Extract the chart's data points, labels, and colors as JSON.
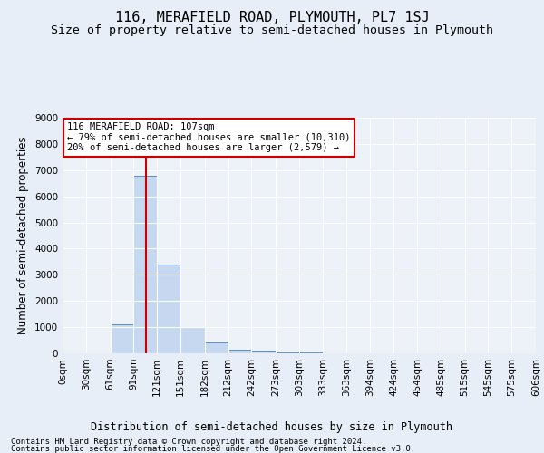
{
  "title_line1": "116, MERAFIELD ROAD, PLYMOUTH, PL7 1SJ",
  "title_line2": "Size of property relative to semi-detached houses in Plymouth",
  "xlabel": "Distribution of semi-detached houses by size in Plymouth",
  "ylabel": "Number of semi-detached properties",
  "footer_line1": "Contains HM Land Registry data © Crown copyright and database right 2024.",
  "footer_line2": "Contains public sector information licensed under the Open Government Licence v3.0.",
  "bin_edges": [
    0,
    30,
    61,
    91,
    121,
    151,
    182,
    212,
    242,
    273,
    303,
    333,
    363,
    394,
    424,
    454,
    485,
    515,
    545,
    575,
    606
  ],
  "bin_labels": [
    "0sqm",
    "30sqm",
    "61sqm",
    "91sqm",
    "121sqm",
    "151sqm",
    "182sqm",
    "212sqm",
    "242sqm",
    "273sqm",
    "303sqm",
    "333sqm",
    "363sqm",
    "394sqm",
    "424sqm",
    "454sqm",
    "485sqm",
    "515sqm",
    "545sqm",
    "575sqm",
    "606sqm"
  ],
  "bar_heights": [
    0,
    0,
    1100,
    6800,
    3400,
    1000,
    400,
    150,
    100,
    50,
    30,
    0,
    0,
    0,
    0,
    0,
    0,
    0,
    0,
    0
  ],
  "bar_color": "#c5d8f0",
  "bar_edge_color": "#5a8fc2",
  "property_size": 107,
  "vline_color": "#cc0000",
  "annotation_line1": "116 MERAFIELD ROAD: 107sqm",
  "annotation_line2": "← 79% of semi-detached houses are smaller (10,310)",
  "annotation_line3": "20% of semi-detached houses are larger (2,579) →",
  "annotation_box_color": "#ffffff",
  "annotation_box_edge": "#cc0000",
  "ylim": [
    0,
    9000
  ],
  "yticks": [
    0,
    1000,
    2000,
    3000,
    4000,
    5000,
    6000,
    7000,
    8000,
    9000
  ],
  "bg_color": "#e8eef7",
  "plot_bg_color": "#edf2f9",
  "grid_color": "#ffffff",
  "title_fontsize": 11,
  "subtitle_fontsize": 9.5,
  "axis_label_fontsize": 8.5,
  "tick_fontsize": 7.5,
  "annotation_fontsize": 7.5,
  "footer_fontsize": 6.5
}
